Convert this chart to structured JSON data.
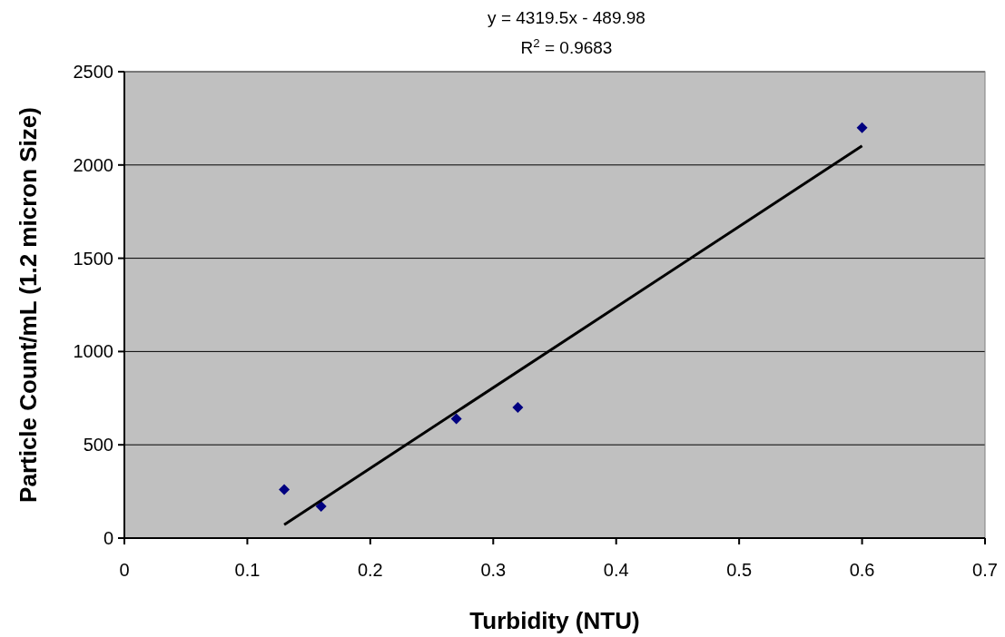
{
  "chart_data": {
    "type": "scatter",
    "xlabel": "Turbidity (NTU)",
    "ylabel": "Particle Count/mL (1.2 micron Size)",
    "annotations": [
      "y = 4319.5x - 489.98",
      "R$^{2}$ = 0.9683"
    ],
    "x": [
      0.13,
      0.16,
      0.27,
      0.32,
      0.6
    ],
    "series": [
      {
        "color": "#000080",
        "values": [
          260,
          170,
          640,
          700,
          2200
        ]
      },
      {
        "type": "line",
        "marker": "none",
        "color": "#000000",
        "x": [
          0.13,
          0.6
        ],
        "values": [
          72,
          2102
        ]
      }
    ],
    "xlim": [
      0,
      0.7
    ],
    "xticks": [
      0,
      0.1,
      0.2,
      0.3,
      0.4,
      0.5,
      0.6,
      0.7
    ],
    "ylim": [
      0,
      2500
    ],
    "yticks": [
      0,
      500,
      1000,
      1500,
      2000,
      2500
    ],
    "grid": "y",
    "marker": "diamond",
    "line_style": "solid"
  }
}
